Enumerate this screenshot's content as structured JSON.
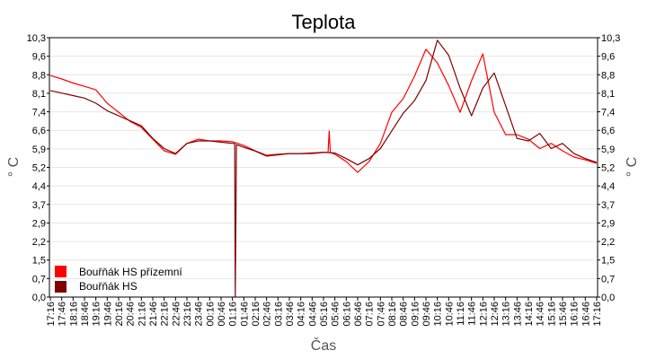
{
  "chart_data": {
    "type": "line",
    "title": "Teplota",
    "xlabel": "Čas",
    "ylabel": "° C",
    "ylabel_right": "° C",
    "ylim": [
      0,
      10.3
    ],
    "yticks": [
      "0,0",
      "0,7",
      "1,5",
      "2,2",
      "2,9",
      "3,7",
      "4,4",
      "5,2",
      "5,9",
      "6,6",
      "7,4",
      "8,1",
      "8,8",
      "9,6",
      "10,3"
    ],
    "xticks": [
      "17:16",
      "17:46",
      "18:16",
      "18:46",
      "19:16",
      "19:46",
      "20:16",
      "20:46",
      "21:16",
      "21:46",
      "22:16",
      "22:46",
      "23:16",
      "23:46",
      "00:16",
      "00:46",
      "01:16",
      "01:46",
      "02:16",
      "02:46",
      "03:16",
      "03:46",
      "04:16",
      "04:46",
      "05:16",
      "05:46",
      "06:16",
      "06:46",
      "07:16",
      "07:46",
      "08:16",
      "08:46",
      "09:16",
      "09:46",
      "10:16",
      "10:46",
      "11:16",
      "11:46",
      "12:16",
      "12:46",
      "13:16",
      "13:46",
      "14:16",
      "14:46",
      "15:16",
      "15:46",
      "16:16",
      "16:46",
      "17:16"
    ],
    "x_unit": "half-hour index from first tick",
    "grid": true,
    "legend_position": "bottom-left",
    "series": [
      {
        "name": "Bouřňák HS přízemní",
        "color": "#ff0000",
        "points": [
          [
            0,
            8.8
          ],
          [
            1,
            8.66
          ],
          [
            2,
            8.5
          ],
          [
            3,
            8.37
          ],
          [
            4,
            8.23
          ],
          [
            5,
            7.7
          ],
          [
            6,
            7.34
          ],
          [
            7,
            6.98
          ],
          [
            8,
            6.74
          ],
          [
            9,
            6.27
          ],
          [
            10,
            5.81
          ],
          [
            11,
            5.67
          ],
          [
            12,
            6.1
          ],
          [
            13,
            6.27
          ],
          [
            14,
            6.2
          ],
          [
            15,
            6.2
          ],
          [
            16,
            6.17
          ],
          [
            17,
            6.02
          ],
          [
            18,
            5.81
          ],
          [
            19,
            5.63
          ],
          [
            20,
            5.67
          ],
          [
            21,
            5.7
          ],
          [
            22,
            5.7
          ],
          [
            23,
            5.7
          ],
          [
            24,
            5.74
          ],
          [
            24.4,
            5.74
          ],
          [
            24.5,
            6.6
          ],
          [
            24.6,
            5.74
          ],
          [
            25,
            5.67
          ],
          [
            26,
            5.38
          ],
          [
            27,
            4.95
          ],
          [
            28,
            5.38
          ],
          [
            29,
            6.1
          ],
          [
            30,
            7.34
          ],
          [
            31,
            7.88
          ],
          [
            32,
            8.77
          ],
          [
            33,
            9.84
          ],
          [
            34,
            9.3
          ],
          [
            35,
            8.4
          ],
          [
            36,
            7.34
          ],
          [
            37,
            8.59
          ],
          [
            38,
            9.66
          ],
          [
            39,
            7.34
          ],
          [
            40,
            6.45
          ],
          [
            41,
            6.45
          ],
          [
            42,
            6.27
          ],
          [
            43,
            5.9
          ],
          [
            44,
            6.1
          ],
          [
            45,
            5.81
          ],
          [
            46,
            5.56
          ],
          [
            47,
            5.45
          ],
          [
            48,
            5.31
          ]
        ]
      },
      {
        "name": "Bouřňák HS",
        "color": "#800000",
        "points": [
          [
            0,
            8.2
          ],
          [
            1,
            8.1
          ],
          [
            2,
            8.0
          ],
          [
            3,
            7.9
          ],
          [
            4,
            7.7
          ],
          [
            5,
            7.4
          ],
          [
            6,
            7.2
          ],
          [
            7,
            7.0
          ],
          [
            8,
            6.8
          ],
          [
            9,
            6.3
          ],
          [
            10,
            5.9
          ],
          [
            11,
            5.7
          ],
          [
            12,
            6.1
          ],
          [
            13,
            6.2
          ],
          [
            14,
            6.2
          ],
          [
            15,
            6.15
          ],
          [
            16,
            6.1
          ],
          [
            16.2,
            6.1
          ],
          [
            16.25,
            0
          ],
          [
            16.3,
            2.9
          ],
          [
            16.35,
            6.05
          ],
          [
            17,
            5.95
          ],
          [
            18,
            5.8
          ],
          [
            19,
            5.6
          ],
          [
            20,
            5.65
          ],
          [
            21,
            5.7
          ],
          [
            22,
            5.7
          ],
          [
            23,
            5.72
          ],
          [
            24,
            5.75
          ],
          [
            25,
            5.72
          ],
          [
            26,
            5.5
          ],
          [
            27,
            5.25
          ],
          [
            28,
            5.5
          ],
          [
            29,
            5.9
          ],
          [
            30,
            6.6
          ],
          [
            31,
            7.3
          ],
          [
            32,
            7.8
          ],
          [
            33,
            8.6
          ],
          [
            34,
            10.2
          ],
          [
            35,
            9.6
          ],
          [
            36,
            8.3
          ],
          [
            37,
            7.2
          ],
          [
            38,
            8.3
          ],
          [
            39,
            8.9
          ],
          [
            40,
            7.6
          ],
          [
            41,
            6.3
          ],
          [
            42,
            6.2
          ],
          [
            43,
            6.5
          ],
          [
            44,
            5.9
          ],
          [
            45,
            6.1
          ],
          [
            46,
            5.7
          ],
          [
            47,
            5.5
          ],
          [
            48,
            5.35
          ]
        ]
      }
    ]
  }
}
